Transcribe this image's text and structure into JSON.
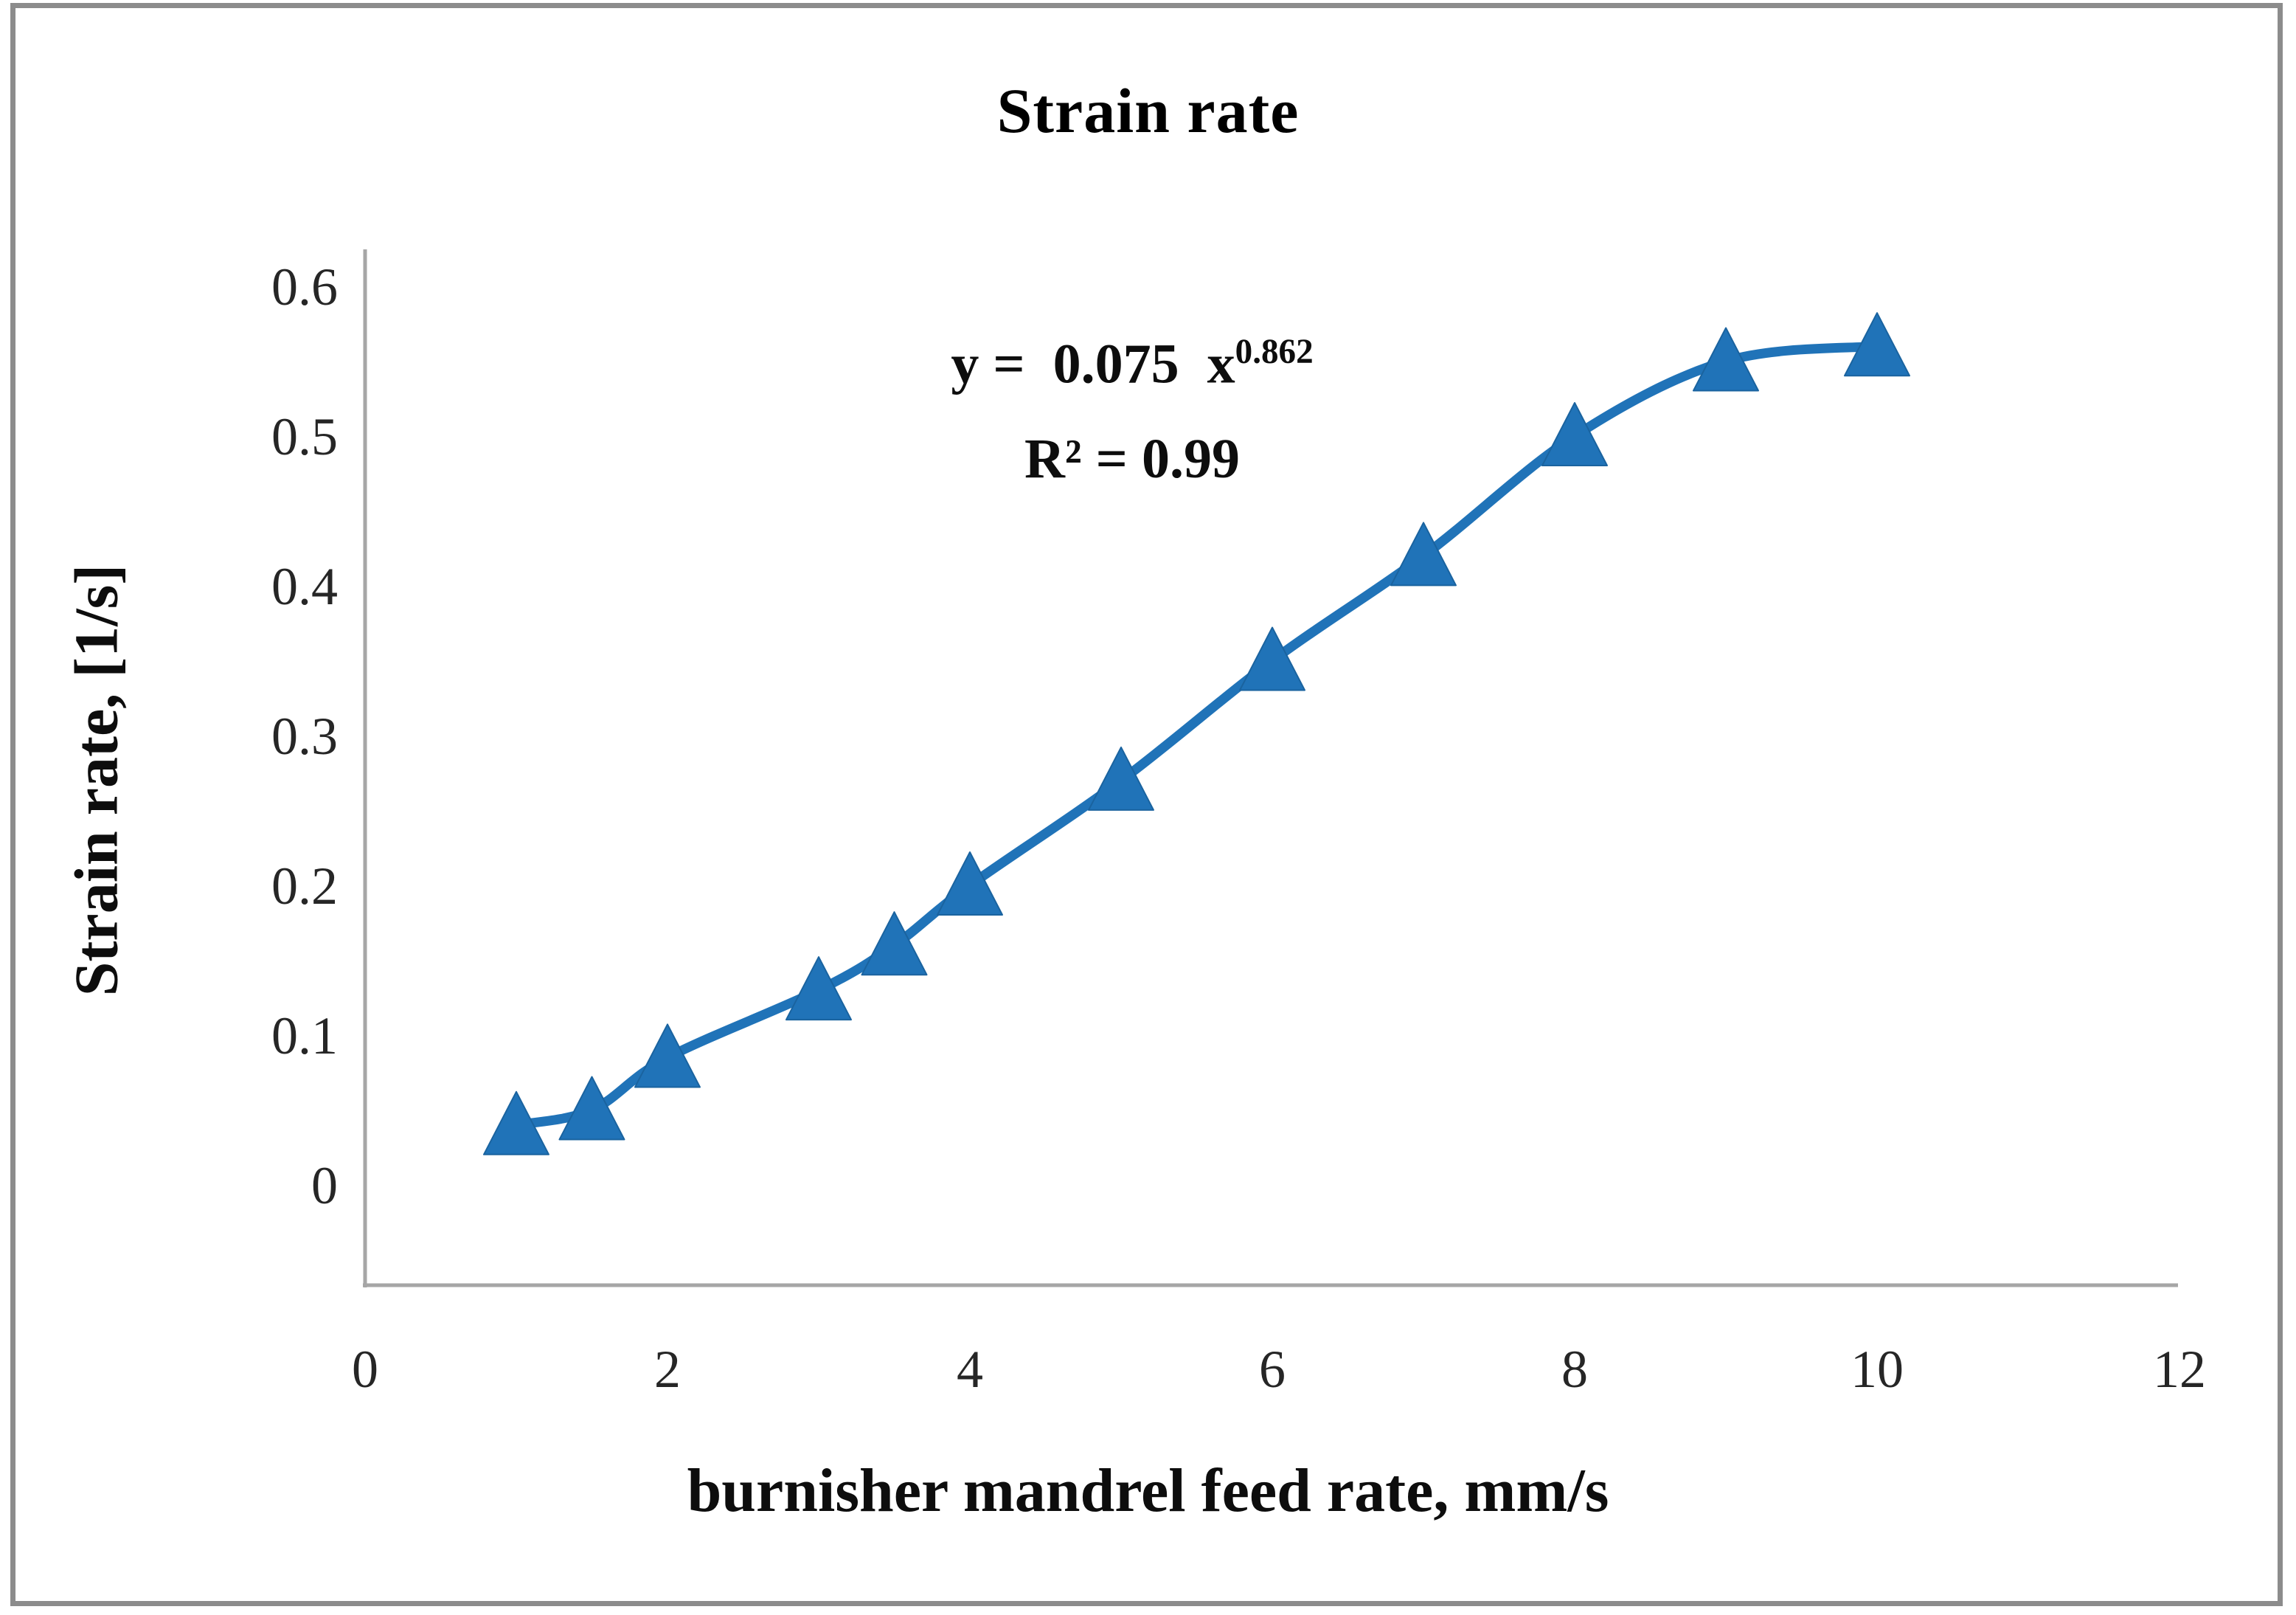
{
  "page": {
    "frame_border_color": "#8c8c8c",
    "background": "#ffffff"
  },
  "chart_data": {
    "type": "line",
    "title": "Strain rate",
    "xlabel": "burnisher mandrel feed rate, mm/s",
    "ylabel": "Strain rate, [1/s]",
    "annotation": {
      "equation_prefix": "y =  0.075  x",
      "equation_exponent": "0.862",
      "r_squared": "R² = 0.99"
    },
    "x": [
      1,
      1.5,
      2,
      3,
      3.5,
      4,
      5,
      6,
      7,
      8,
      9,
      10
    ],
    "y": [
      0.04,
      0.05,
      0.085,
      0.13,
      0.16,
      0.2,
      0.27,
      0.35,
      0.42,
      0.5,
      0.55,
      0.56
    ],
    "x_ticks": [
      "0",
      "2",
      "4",
      "6",
      "8",
      "10",
      "12"
    ],
    "y_ticks": [
      "0",
      "0.1",
      "0.2",
      "0.3",
      "0.4",
      "0.5",
      "0.6"
    ],
    "xlim": [
      0,
      12
    ],
    "ylim": [
      -0.07,
      0.63
    ],
    "grid": false,
    "legend": null,
    "marker": "triangle-up",
    "series_color": "#2073B8",
    "marker_edge_color": "#1A639F",
    "axis_color": "#A6A6A6",
    "tick_label_color": "#262626"
  }
}
